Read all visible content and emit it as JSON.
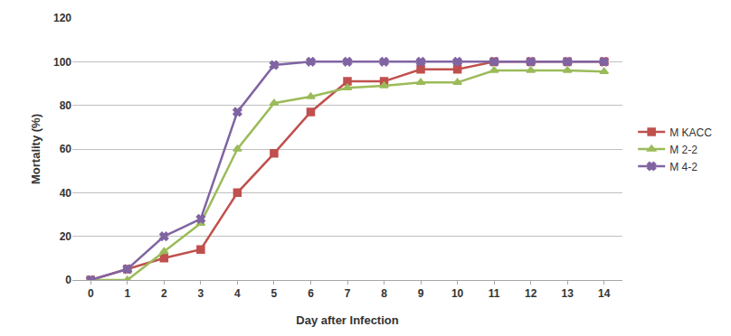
{
  "chart_data": {
    "type": "line",
    "x_label": "Day after Infection",
    "y_label": "Mortality (%)",
    "x": [
      0,
      1,
      2,
      3,
      4,
      5,
      6,
      7,
      8,
      9,
      10,
      11,
      12,
      13,
      14
    ],
    "xlim": [
      -0.5,
      14.5
    ],
    "xticks": [
      0,
      1,
      2,
      3,
      4,
      5,
      6,
      7,
      8,
      9,
      10,
      11,
      12,
      13,
      14
    ],
    "ylim": [
      0,
      120
    ],
    "yticks": [
      0,
      20,
      40,
      60,
      80,
      100,
      120
    ],
    "grid": true,
    "legend": "right",
    "series": [
      {
        "name": "M KACC",
        "color": "#c0504d",
        "marker": "square",
        "values": [
          0,
          5,
          10,
          14,
          40,
          58,
          77,
          91,
          91,
          96.5,
          96.5,
          100,
          100,
          100,
          100
        ]
      },
      {
        "name": "M 2-2",
        "color": "#9bbb59",
        "marker": "triangle",
        "values": [
          0,
          0,
          13,
          26,
          60,
          81,
          84,
          88,
          89,
          90.5,
          90.5,
          96,
          96,
          96,
          95.5
        ]
      },
      {
        "name": "M 4-2",
        "color": "#8064a2",
        "marker": "x",
        "values": [
          0,
          5,
          20,
          28,
          77,
          98.5,
          100,
          100,
          100,
          100,
          100,
          100,
          100,
          100,
          100
        ]
      }
    ]
  }
}
